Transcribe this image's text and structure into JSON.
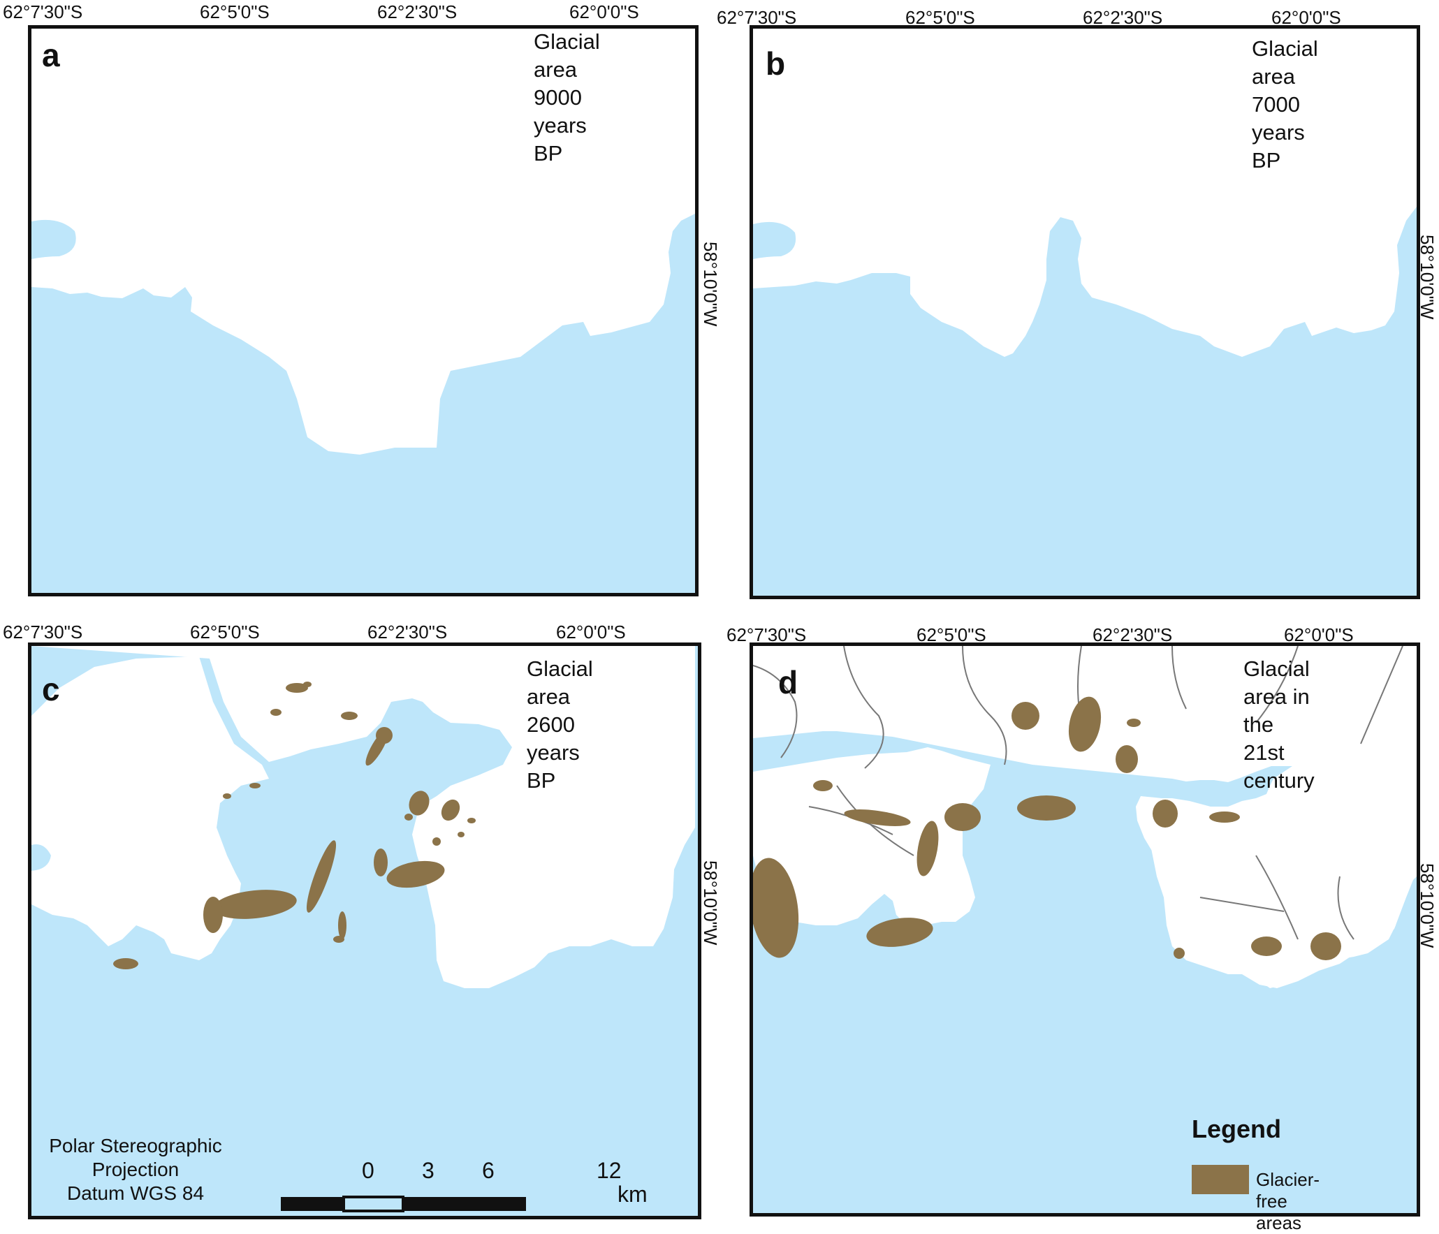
{
  "colors": {
    "sea": "#bee6fa",
    "ice": "#ffffff",
    "glacier_free": "#8b7349",
    "frame": "#111111",
    "basin_lines": "#777777"
  },
  "graticule": {
    "lon_ticks": [
      "62°7'30\"S",
      "62°5'0\"S",
      "62°2'30\"S",
      "62°0'0\"S"
    ],
    "lat_tick": "58°10'0\"W"
  },
  "panels": [
    {
      "letter": "a",
      "title": "Glacial area\n9000 years BP"
    },
    {
      "letter": "b",
      "title": "Glacial area\n7000 years BP"
    },
    {
      "letter": "c",
      "title": "Glacial area\n2600 years BP"
    },
    {
      "letter": "d",
      "title": "Glacial area in\nthe 21st century"
    }
  ],
  "projection": {
    "line1": "Polar Stereographic",
    "line2": "Projection",
    "line3": "Datum WGS 84"
  },
  "scale_bar": {
    "labels": [
      "0",
      "3",
      "6",
      "12"
    ],
    "unit": "km"
  },
  "legend": {
    "title": "Legend",
    "item_label": "Glacier-free areas"
  }
}
